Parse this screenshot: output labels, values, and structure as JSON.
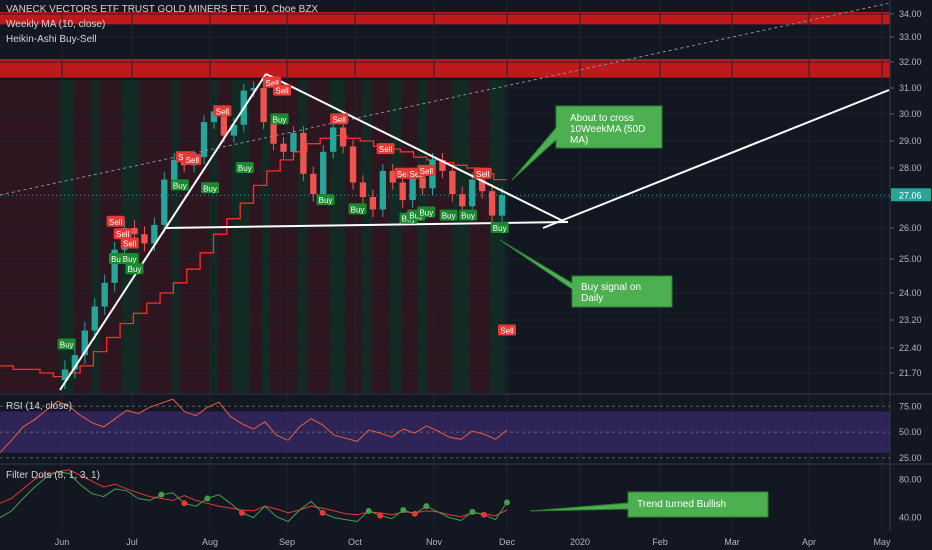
{
  "header": {
    "symbol_line": "VANECK VECTORS ETF TRUST GOLD MINERS ETF, 1D, Cboe BZX",
    "indicator_ma": "Weekly MA (10, close)",
    "indicator_ha": "Heikin-Ashi Buy-Sell"
  },
  "rsi_pane": {
    "title": "RSI (14, close)"
  },
  "filter_pane": {
    "title": "Filter Dots (8, 1, 3, 1)"
  },
  "annotations": {
    "cross_ma": "About to cross\n10WeekMA (50D\nMA)",
    "buy_daily": "Buy signal on\nDaily",
    "trend_bullish": "Trend turned Bullish"
  },
  "colors": {
    "background": "#131722",
    "up": "#26a69a",
    "down": "#ef5350",
    "ma_line": "#ff2a2a",
    "resistance_band": "#d11b1b",
    "callout": "#4caf50",
    "rsi_line": "#ef5a3a",
    "rsi_band": "#3a2a6a",
    "sell_label": "#e53935",
    "buy_label": "#1b8a2f"
  },
  "chart_data": [
    {
      "type": "candlestick",
      "title": "VANECK VECTORS ETF TRUST GOLD MINERS ETF, 1D, Cboe BZX",
      "x_ticks": [
        "Jun",
        "Jul",
        "Aug",
        "Sep",
        "Oct",
        "Nov",
        "Dec",
        "2020",
        "Feb",
        "Mar",
        "Apr",
        "May"
      ],
      "y_ticks": [
        21.7,
        22.4,
        23.2,
        24.0,
        25.0,
        26.0,
        27.0,
        28.0,
        29.0,
        30.0,
        31.0,
        32.0,
        33.0,
        34.0
      ],
      "last_price": 27.06,
      "ylim": [
        21.2,
        34.3
      ],
      "series": [
        {
          "name": "Weekly MA (10, close)",
          "values": [
            21.9,
            21.8,
            21.8,
            21.7,
            21.6,
            21.7,
            21.9,
            22.3,
            22.7,
            23.1,
            23.4,
            23.7,
            24.0,
            24.3,
            24.7,
            25.2,
            25.8,
            26.3,
            26.8,
            27.4,
            27.9,
            28.3,
            28.6,
            28.9,
            29.1,
            29.2,
            29.1,
            29.0,
            28.8,
            28.7,
            28.6,
            28.4,
            28.3,
            28.2,
            28.1,
            28.0,
            27.8,
            27.6
          ]
        }
      ],
      "ohlc_close": [
        21.8,
        22.2,
        22.9,
        23.6,
        24.3,
        25.3,
        26.0,
        25.8,
        25.5,
        26.1,
        27.6,
        28.3,
        28.1,
        28.4,
        29.7,
        30.1,
        29.2,
        29.6,
        30.9,
        31.0,
        29.7,
        28.9,
        28.6,
        29.3,
        27.8,
        27.1,
        28.6,
        29.5,
        28.8,
        27.5,
        27.0,
        26.6,
        27.9,
        27.5,
        26.9,
        27.7,
        27.3,
        28.3,
        27.9,
        27.1,
        26.7,
        27.6,
        27.2,
        26.4,
        27.06
      ],
      "markers": [
        {
          "label": "Sell",
          "date": "May 30",
          "price": 22.9
        },
        {
          "label": "Buy",
          "date": "Jun 3",
          "price": 22.5
        },
        {
          "label": "Sell",
          "date": "Jun 24",
          "price": 26.2
        },
        {
          "label": "Sell",
          "date": "Jun 27",
          "price": 25.8
        },
        {
          "label": "Sell",
          "date": "Jun 30",
          "price": 25.5
        },
        {
          "label": "Buy",
          "date": "Jun 25",
          "price": 25.0
        },
        {
          "label": "Buy",
          "date": "Jun 30",
          "price": 25.0
        },
        {
          "label": "Buy",
          "date": "Jul 2",
          "price": 24.7
        },
        {
          "label": "Sell",
          "date": "Jul 22",
          "price": 28.4
        },
        {
          "label": "Buy",
          "date": "Jul 20",
          "price": 27.4
        },
        {
          "label": "Sell",
          "date": "Jul 25",
          "price": 28.3
        },
        {
          "label": "Buy",
          "date": "Aug 1",
          "price": 27.3
        },
        {
          "label": "Sell",
          "date": "Aug 6",
          "price": 30.1
        },
        {
          "label": "Buy",
          "date": "Aug 15",
          "price": 28.0
        },
        {
          "label": "Sell",
          "date": "Aug 26",
          "price": 31.2
        },
        {
          "label": "Sell",
          "date": "Aug 30",
          "price": 30.9
        },
        {
          "label": "Buy",
          "date": "Aug 29",
          "price": 29.8
        },
        {
          "label": "Sell",
          "date": "Sep 24",
          "price": 29.8
        },
        {
          "label": "Buy",
          "date": "Sep 18",
          "price": 26.9
        },
        {
          "label": "Sell",
          "date": "Oct 13",
          "price": 28.7
        },
        {
          "label": "Buy",
          "date": "Oct 2",
          "price": 26.6
        },
        {
          "label": "Sell",
          "date": "Oct 20",
          "price": 27.8
        },
        {
          "label": "Sell",
          "date": "Oct 25",
          "price": 27.8
        },
        {
          "label": "Sell",
          "date": "Oct 29",
          "price": 27.9
        },
        {
          "label": "Buy",
          "date": "Oct 22",
          "price": 26.3
        },
        {
          "label": "Buy",
          "date": "Oct 25",
          "price": 26.4
        },
        {
          "label": "Buy",
          "date": "Oct 29",
          "price": 26.5
        },
        {
          "label": "Buy",
          "date": "Nov 7",
          "price": 26.4
        },
        {
          "label": "Sell",
          "date": "Nov 21",
          "price": 27.8
        },
        {
          "label": "Buy",
          "date": "Nov 15",
          "price": 26.4
        },
        {
          "label": "Buy",
          "date": "Nov 28",
          "price": 26.0
        }
      ]
    },
    {
      "type": "line",
      "title": "RSI (14, close)",
      "y_ticks": [
        25.0,
        50.0,
        75.0
      ],
      "ylim": [
        20,
        85
      ],
      "band": [
        30,
        70
      ],
      "values": [
        30,
        42,
        55,
        62,
        71,
        80,
        75,
        66,
        59,
        55,
        63,
        71,
        68,
        74,
        78,
        82,
        70,
        66,
        74,
        79,
        65,
        58,
        53,
        60,
        47,
        42,
        55,
        63,
        57,
        47,
        44,
        41,
        52,
        49,
        45,
        53,
        49,
        56,
        51,
        45,
        43,
        51,
        48,
        43,
        52
      ]
    },
    {
      "type": "line",
      "title": "Filter Dots (8, 1, 3, 1)",
      "y_ticks": [
        40.0,
        80.0
      ],
      "ylim": [
        25,
        95
      ],
      "series": [
        {
          "values": [
            55,
            60,
            70,
            80,
            85,
            88,
            90,
            84,
            78,
            72,
            75,
            70,
            66,
            62,
            60,
            58,
            63,
            58,
            55,
            52,
            50,
            48,
            47,
            52,
            49,
            45,
            48,
            52,
            50,
            47,
            44,
            43,
            46,
            45,
            43,
            46,
            45,
            47,
            46,
            43,
            41,
            45,
            44,
            42,
            48
          ]
        },
        {
          "values": [
            40,
            47,
            60,
            72,
            82,
            88,
            86,
            74,
            65,
            62,
            70,
            68,
            60,
            58,
            64,
            66,
            55,
            52,
            60,
            64,
            55,
            45,
            40,
            52,
            41,
            36,
            48,
            57,
            45,
            40,
            38,
            36,
            47,
            42,
            39,
            48,
            44,
            52,
            46,
            40,
            37,
            46,
            43,
            38,
            56
          ]
        }
      ]
    }
  ]
}
